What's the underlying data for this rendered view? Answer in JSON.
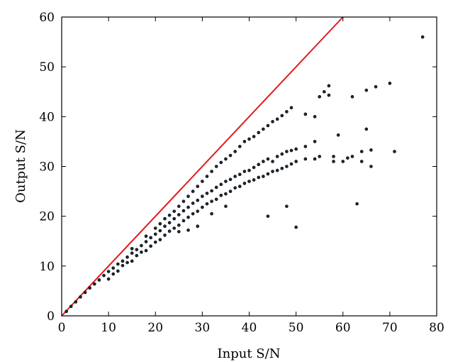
{
  "chart_data": {
    "type": "scatter",
    "title": "",
    "xlabel": "Input S/N",
    "ylabel": "Output S/N",
    "xlim": [
      0,
      80
    ],
    "ylim": [
      0,
      60
    ],
    "xticks": [
      0,
      10,
      20,
      30,
      40,
      50,
      60,
      70,
      80
    ],
    "yticks": [
      0,
      10,
      20,
      30,
      40,
      50,
      60
    ],
    "xtick_labels": [
      "0",
      "10",
      "20",
      "30",
      "40",
      "50",
      "60",
      "70",
      "80"
    ],
    "ytick_labels": [
      "0",
      "10",
      "20",
      "30",
      "40",
      "50",
      "60"
    ],
    "grid": false,
    "marker_color": "#1c2a36",
    "series": [
      {
        "type": "line",
        "color": "#e01b1b",
        "points": [
          [
            0,
            0
          ],
          [
            60,
            60
          ]
        ]
      },
      {
        "type": "scatter",
        "color": "#1c2a36",
        "points": [
          [
            1,
            0.9
          ],
          [
            2,
            1.9
          ],
          [
            3,
            2.8
          ],
          [
            4,
            3.8
          ],
          [
            5,
            4.7
          ],
          [
            6,
            5.6
          ],
          [
            7,
            6.4
          ],
          [
            8,
            7.2
          ],
          [
            9,
            8.1
          ],
          [
            10,
            8.9
          ],
          [
            10,
            7.4
          ],
          [
            11,
            9.6
          ],
          [
            11,
            8.4
          ],
          [
            12,
            10.4
          ],
          [
            12,
            9.0
          ],
          [
            13,
            11.0
          ],
          [
            13,
            10.1
          ],
          [
            14,
            11.8
          ],
          [
            14,
            10.7
          ],
          [
            15,
            12.6
          ],
          [
            15,
            11.0
          ],
          [
            15,
            13.5
          ],
          [
            16,
            13.3
          ],
          [
            16,
            12.1
          ],
          [
            17,
            14.1
          ],
          [
            17,
            12.8
          ],
          [
            18,
            14.9
          ],
          [
            18,
            13.1
          ],
          [
            18,
            16.0
          ],
          [
            19,
            15.7
          ],
          [
            19,
            14.0
          ],
          [
            20,
            16.4
          ],
          [
            20,
            14.8
          ],
          [
            20,
            17.6
          ],
          [
            21,
            17.1
          ],
          [
            21,
            15.3
          ],
          [
            21,
            18.5
          ],
          [
            22,
            18.0
          ],
          [
            22,
            16.2
          ],
          [
            22,
            19.5
          ],
          [
            23,
            18.7
          ],
          [
            23,
            17.0
          ],
          [
            23,
            20.2
          ],
          [
            24,
            19.5
          ],
          [
            24,
            17.6
          ],
          [
            24,
            21.0
          ],
          [
            25,
            20.3
          ],
          [
            25,
            18.2
          ],
          [
            25,
            22.0
          ],
          [
            25,
            16.9
          ],
          [
            26,
            21.1
          ],
          [
            26,
            19.1
          ],
          [
            26,
            23.0
          ],
          [
            27,
            21.8
          ],
          [
            27,
            19.8
          ],
          [
            27,
            24.0
          ],
          [
            27,
            17.2
          ],
          [
            28,
            22.6
          ],
          [
            28,
            20.5
          ],
          [
            28,
            25.0
          ],
          [
            29,
            23.2
          ],
          [
            29,
            21.0
          ],
          [
            29,
            26.0
          ],
          [
            29,
            18.0
          ],
          [
            30,
            24.0
          ],
          [
            30,
            21.8
          ],
          [
            30,
            27.0
          ],
          [
            31,
            24.6
          ],
          [
            31,
            22.5
          ],
          [
            31,
            28.0
          ],
          [
            32,
            25.1
          ],
          [
            32,
            23.0
          ],
          [
            32,
            29.0
          ],
          [
            32,
            20.5
          ],
          [
            33,
            25.8
          ],
          [
            33,
            23.4
          ],
          [
            33,
            30.0
          ],
          [
            34,
            26.4
          ],
          [
            34,
            24.2
          ],
          [
            34,
            30.8
          ],
          [
            35,
            27.0
          ],
          [
            35,
            24.5
          ],
          [
            35,
            31.5
          ],
          [
            35,
            22.0
          ],
          [
            36,
            27.4
          ],
          [
            36,
            25.0
          ],
          [
            36,
            32.2
          ],
          [
            37,
            28.0
          ],
          [
            37,
            25.7
          ],
          [
            37,
            33.0
          ],
          [
            38,
            28.4
          ],
          [
            38,
            26.0
          ],
          [
            38,
            34.0
          ],
          [
            39,
            29.0
          ],
          [
            39,
            26.6
          ],
          [
            39,
            35.0
          ],
          [
            40,
            29.2
          ],
          [
            40,
            27.0
          ],
          [
            40,
            35.5
          ],
          [
            41,
            29.8
          ],
          [
            41,
            27.3
          ],
          [
            41,
            36.0
          ],
          [
            42,
            30.4
          ],
          [
            42,
            27.8
          ],
          [
            42,
            36.8
          ],
          [
            43,
            31.0
          ],
          [
            43,
            28.0
          ],
          [
            43,
            37.5
          ],
          [
            44,
            31.5
          ],
          [
            44,
            28.5
          ],
          [
            44,
            38.2
          ],
          [
            45,
            31.0
          ],
          [
            45,
            29.0
          ],
          [
            45,
            39.0
          ],
          [
            46,
            32.0
          ],
          [
            46,
            29.2
          ],
          [
            46,
            39.5
          ],
          [
            47,
            32.5
          ],
          [
            47,
            29.6
          ],
          [
            47,
            40.2
          ],
          [
            48,
            33.0
          ],
          [
            48,
            30.0
          ],
          [
            48,
            41.0
          ],
          [
            49,
            33.2
          ],
          [
            49,
            30.5
          ],
          [
            49,
            41.8
          ],
          [
            50,
            17.8
          ],
          [
            50,
            33.5
          ],
          [
            50,
            31.0
          ],
          [
            52,
            34.0
          ],
          [
            52,
            31.5
          ],
          [
            52,
            40.5
          ],
          [
            54,
            35.0
          ],
          [
            54,
            31.5
          ],
          [
            54,
            40.0
          ],
          [
            55,
            44.0
          ],
          [
            55,
            32.0
          ],
          [
            56,
            45.0
          ],
          [
            57,
            46.2
          ],
          [
            57,
            44.3
          ],
          [
            58,
            32.0
          ],
          [
            58,
            31.0
          ],
          [
            59,
            36.3
          ],
          [
            60,
            31.0
          ],
          [
            61,
            31.7
          ],
          [
            62,
            44.0
          ],
          [
            62,
            32.0
          ],
          [
            63,
            22.5
          ],
          [
            64,
            33.0
          ],
          [
            64,
            31.0
          ],
          [
            65,
            45.3
          ],
          [
            65,
            37.5
          ],
          [
            66,
            33.3
          ],
          [
            66,
            30.0
          ],
          [
            67,
            46.0
          ],
          [
            70,
            46.7
          ],
          [
            71,
            33.0
          ],
          [
            77,
            56.0
          ],
          [
            48,
            22.0
          ],
          [
            44,
            20.0
          ]
        ]
      }
    ]
  }
}
